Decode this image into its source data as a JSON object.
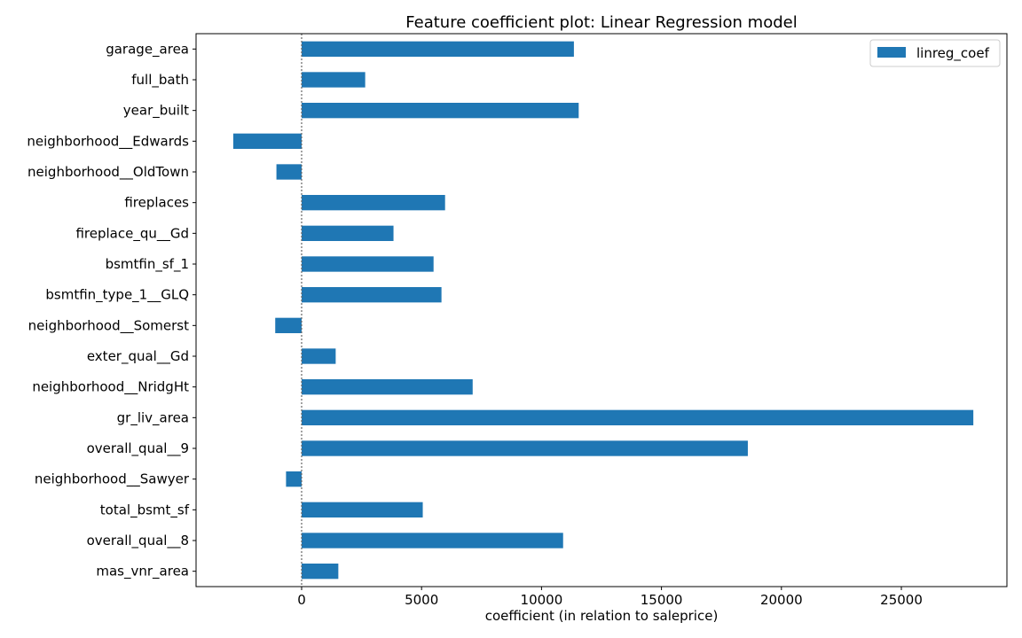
{
  "chart_data": {
    "type": "bar",
    "orientation": "horizontal",
    "title": "Feature coefficient plot: Linear Regression model",
    "xlabel": "coefficient (in relation to saleprice)",
    "ylabel": "",
    "xlim": [
      -4400,
      29400
    ],
    "xticks": [
      0,
      5000,
      10000,
      15000,
      20000,
      25000
    ],
    "grid": false,
    "zero_line": "dotted",
    "legend_position": "top-right",
    "bar_color": "#1f77b4",
    "categories": [
      "garage_area",
      "full_bath",
      "year_built",
      "neighborhood__Edwards",
      "neighborhood__OldTown",
      "fireplaces",
      "fireplace_qu__Gd",
      "bsmtfin_sf_1",
      "bsmtfin_type_1__GLQ",
      "neighborhood__Somerst",
      "exter_qual__Gd",
      "neighborhood__NridgHt",
      "gr_liv_area",
      "overall_qual__9",
      "neighborhood__Sawyer",
      "total_bsmt_sf",
      "overall_qual__8",
      "mas_vnr_area"
    ],
    "series": [
      {
        "name": "linreg_coef",
        "values": [
          11350,
          2650,
          11550,
          -2850,
          -1050,
          5980,
          3830,
          5500,
          5830,
          -1100,
          1420,
          7130,
          28000,
          18600,
          -650,
          5050,
          10900,
          1530
        ]
      }
    ]
  }
}
